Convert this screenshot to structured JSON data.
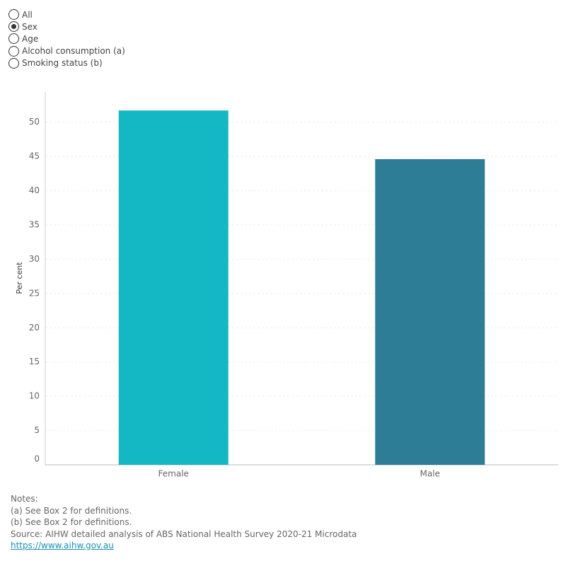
{
  "controls": {
    "options": [
      "All",
      "Sex",
      "Age",
      "Alcohol consumption (a)",
      "Smoking status (b)"
    ],
    "selected_index": 1
  },
  "chart_data": {
    "type": "bar",
    "y_label": "Per cent",
    "categories": [
      "Female",
      "Male"
    ],
    "values": [
      51.7,
      44.6
    ],
    "colors": [
      "#14b8c4",
      "#2d7d96"
    ],
    "ylim": [
      0,
      54.4
    ],
    "yticks": [
      0,
      5,
      10,
      15,
      20,
      25,
      30,
      35,
      40,
      45,
      50
    ],
    "grid": true
  },
  "notes": {
    "heading": "Notes:",
    "lines": [
      "(a) See Box 2 for definitions.",
      "(b) See Box 2 for definitions.",
      "Source: AIHW detailed analysis of ABS National Health Survey 2020-21 Microdata"
    ],
    "link": "https://www.aihw.gov.au"
  }
}
